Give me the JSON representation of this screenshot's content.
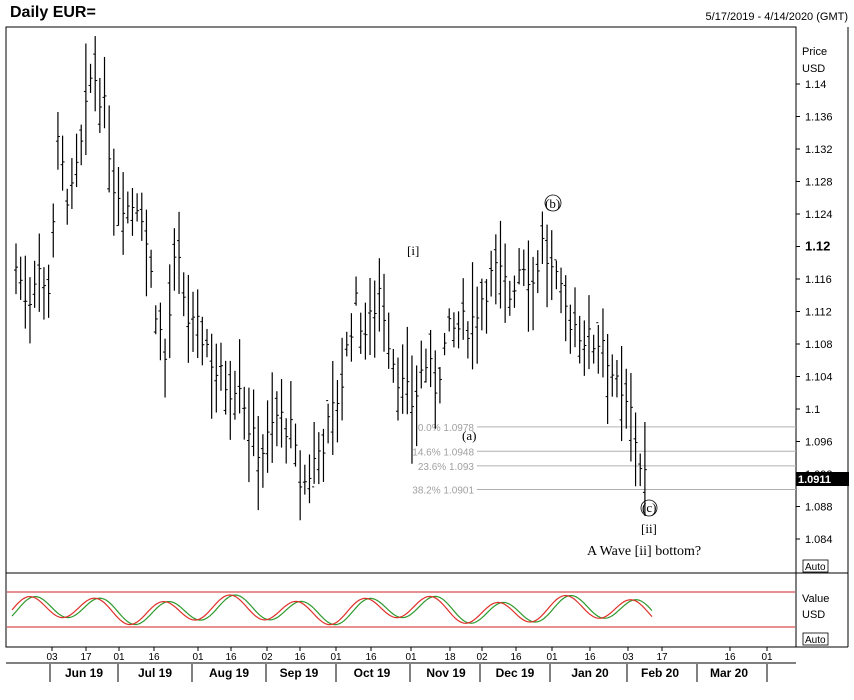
{
  "header": {
    "title": "Daily EUR=",
    "date_range": "5/17/2019 - 4/14/2020 (GMT)"
  },
  "price_axis": {
    "label_line1": "Price",
    "label_line2": "USD",
    "ticks": [
      "1.14",
      "1.136",
      "1.132",
      "1.128",
      "1.124",
      "1.12",
      "1.116",
      "1.112",
      "1.108",
      "1.104",
      "1.1",
      "1.096",
      "1.092",
      "1.088",
      "1.084"
    ],
    "bold_tick": "1.12",
    "last_price": "1.0911",
    "auto_label": "Auto"
  },
  "indicator_axis": {
    "label_line1": "Value",
    "label_line2": "USD",
    "auto_label": "Auto"
  },
  "x_axis": {
    "day_ticks": [
      "03",
      "17",
      "01",
      "16",
      "01",
      "16",
      "02",
      "16",
      "01",
      "16",
      "01",
      "18",
      "02",
      "16",
      "01",
      "16",
      "03",
      "17",
      "16",
      "01"
    ],
    "month_labels": [
      "Jun 19",
      "Jul 19",
      "Aug 19",
      "Sep 19",
      "Oct 19",
      "Nov 19",
      "Dec 19",
      "Jan 20",
      "Feb 20",
      "Mar 20"
    ]
  },
  "annotations": {
    "wave_i": "[i]",
    "wave_a": "(a)",
    "wave_b": "(b)",
    "wave_c": "(c)",
    "wave_ii": "[ii]",
    "comment": "A Wave [ii] bottom?"
  },
  "fib_levels": [
    {
      "label": "0.0%  1.0978",
      "price": 1.0978
    },
    {
      "label": "14.6% 1.0948",
      "price": 1.0948
    },
    {
      "label": "23.6% 1.093",
      "price": 1.093
    },
    {
      "label": "38.2% 1.0901",
      "price": 1.0901
    }
  ],
  "colors": {
    "bars": "#000000",
    "fib_line": "#b0b0b0",
    "fib_text": "#a0a0a0",
    "osc_k": "#e0302a",
    "osc_d": "#2e9a2e",
    "osc_bounds": "#d02020",
    "last_price_bg": "#000000",
    "last_price_fg": "#ffffff"
  },
  "chart_data": {
    "type": "ohlc",
    "title": "Daily EUR=",
    "ylabel": "Price USD",
    "ylim": [
      1.082,
      1.1475
    ],
    "path_points": [
      {
        "x": 0,
        "y": 1.1175
      },
      {
        "x": 8,
        "y": 1.113
      },
      {
        "x": 14,
        "y": 1.1185
      },
      {
        "x": 20,
        "y": 1.1125
      },
      {
        "x": 27,
        "y": 1.132
      },
      {
        "x": 35,
        "y": 1.125
      },
      {
        "x": 43,
        "y": 1.133
      },
      {
        "x": 49,
        "y": 1.142
      },
      {
        "x": 56,
        "y": 1.138
      },
      {
        "x": 63,
        "y": 1.128
      },
      {
        "x": 72,
        "y": 1.125
      },
      {
        "x": 80,
        "y": 1.126
      },
      {
        "x": 88,
        "y": 1.115
      },
      {
        "x": 96,
        "y": 1.106
      },
      {
        "x": 103,
        "y": 1.119
      },
      {
        "x": 112,
        "y": 1.11
      },
      {
        "x": 121,
        "y": 1.109
      },
      {
        "x": 130,
        "y": 1.104
      },
      {
        "x": 138,
        "y": 1.103
      },
      {
        "x": 144,
        "y": 1.104
      },
      {
        "x": 152,
        "y": 1.096
      },
      {
        "x": 160,
        "y": 1.095
      },
      {
        "x": 168,
        "y": 1.099
      },
      {
        "x": 176,
        "y": 1.098
      },
      {
        "x": 184,
        "y": 1.09
      },
      {
        "x": 193,
        "y": 1.094
      },
      {
        "x": 202,
        "y": 1.098
      },
      {
        "x": 210,
        "y": 1.1035
      },
      {
        "x": 218,
        "y": 1.113
      },
      {
        "x": 226,
        "y": 1.109
      },
      {
        "x": 234,
        "y": 1.115
      },
      {
        "x": 242,
        "y": 1.107
      },
      {
        "x": 250,
        "y": 1.102
      },
      {
        "x": 256,
        "y": 1.1005
      },
      {
        "x": 263,
        "y": 1.106
      },
      {
        "x": 270,
        "y": 1.103
      },
      {
        "x": 278,
        "y": 1.109
      },
      {
        "x": 286,
        "y": 1.11
      },
      {
        "x": 294,
        "y": 1.111
      },
      {
        "x": 302,
        "y": 1.115
      },
      {
        "x": 310,
        "y": 1.117
      },
      {
        "x": 318,
        "y": 1.114
      },
      {
        "x": 326,
        "y": 1.119
      },
      {
        "x": 334,
        "y": 1.115
      },
      {
        "x": 338,
        "y": 1.121
      },
      {
        "x": 346,
        "y": 1.116
      },
      {
        "x": 354,
        "y": 1.112
      },
      {
        "x": 362,
        "y": 1.11
      },
      {
        "x": 370,
        "y": 1.108
      },
      {
        "x": 378,
        "y": 1.109
      },
      {
        "x": 386,
        "y": 1.103
      },
      {
        "x": 390,
        "y": 1.1005
      },
      {
        "x": 396,
        "y": 1.0995
      },
      {
        "x": 402,
        "y": 1.0935
      },
      {
        "x": 406,
        "y": 1.0911
      }
    ]
  }
}
